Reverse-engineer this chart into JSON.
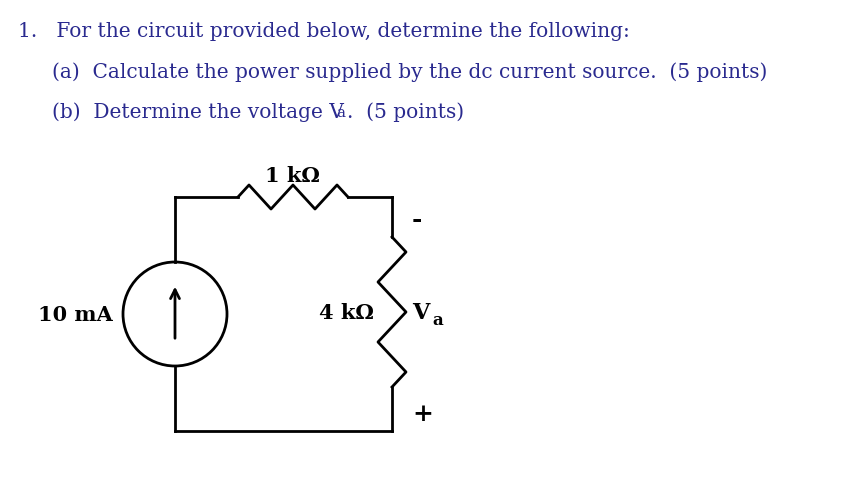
{
  "background_color": "#ffffff",
  "title_line1": "1.   For the circuit provided below, determine the following:",
  "line_a": "(a)  Calculate the power supplied by the dc current source.  (5 points)",
  "line_b": "(b)  Determine the voltage V",
  "line_b_sub": "a",
  "line_b_end": ".  (5 points)",
  "resistor_label": "1 kΩ",
  "resistor2_label": "4 kΩ",
  "source_label": "10 mA",
  "va_label": "V",
  "va_sub": "a",
  "plus_label": "+",
  "minus_label": "-",
  "circuit_color": "#000000",
  "text_color": "#2a2a8f",
  "font_size_main": 14.5,
  "font_size_circuit": 14
}
